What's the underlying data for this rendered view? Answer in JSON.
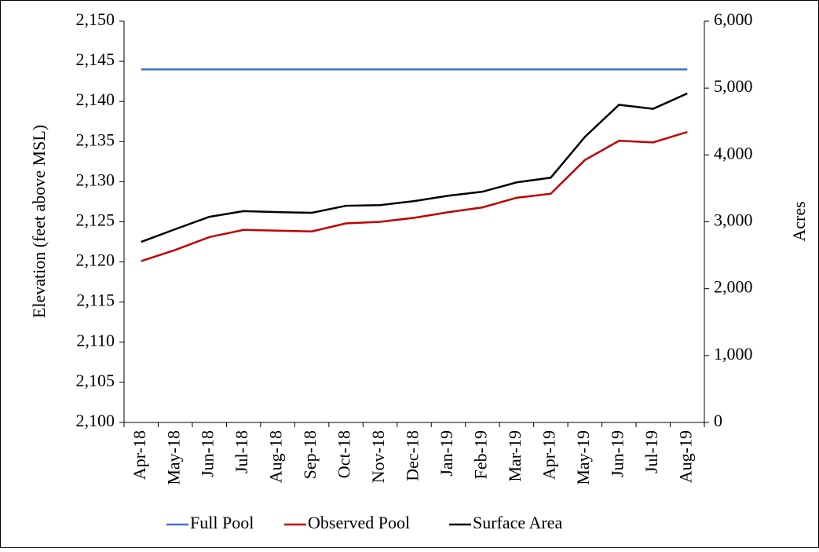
{
  "chart_data": {
    "type": "line",
    "ylabel": "Elevation (feet above MSL)",
    "y2label": "Acres",
    "categories": [
      "Apr-18",
      "May-18",
      "Jun-18",
      "Jul-18",
      "Aug-18",
      "Sep-18",
      "Oct-18",
      "Nov-18",
      "Dec-18",
      "Jan-19",
      "Feb-19",
      "Mar-19",
      "Apr-19",
      "May-19",
      "Jun-19",
      "Jul-19",
      "Aug-19"
    ],
    "series": [
      {
        "name": "Full Pool",
        "color": "#4472c4",
        "values": [
          2144,
          2144,
          2144,
          2144,
          2144,
          2144,
          2144,
          2144,
          2144,
          2144,
          2144,
          2144,
          2144,
          2144,
          2144,
          2144,
          2144
        ]
      },
      {
        "name": "Observed Pool",
        "color": "#c00000",
        "values": [
          2120.1,
          2121.5,
          2123.1,
          2124.0,
          2123.9,
          2123.8,
          2124.8,
          2125.0,
          2125.5,
          2126.2,
          2126.8,
          2128.0,
          2128.5,
          2132.7,
          2135.1,
          2134.9,
          2136.2
        ]
      },
      {
        "name": "Surface Area",
        "color": "#000000",
        "axis": "y2",
        "values": [
          2700,
          2890,
          3075,
          3160,
          3145,
          3135,
          3240,
          3250,
          3310,
          3390,
          3450,
          3590,
          3660,
          4270,
          4750,
          4690,
          4920
        ]
      }
    ],
    "ylim": [
      2100,
      2150
    ],
    "yticks": [
      {
        "value": 2100,
        "label": "2,100"
      },
      {
        "value": 2105,
        "label": "2,105"
      },
      {
        "value": 2110,
        "label": "2,110"
      },
      {
        "value": 2115,
        "label": "2,115"
      },
      {
        "value": 2120,
        "label": "2,120"
      },
      {
        "value": 2125,
        "label": "2,125"
      },
      {
        "value": 2130,
        "label": "2,130"
      },
      {
        "value": 2135,
        "label": "2,135"
      },
      {
        "value": 2140,
        "label": "2,140"
      },
      {
        "value": 2145,
        "label": "2,145"
      },
      {
        "value": 2150,
        "label": "2,150"
      }
    ],
    "y2lim": [
      0,
      6000
    ],
    "y2ticks": [
      0,
      {
        "value": 1000,
        "label": "1,000"
      },
      {
        "value": 2000,
        "label": "2,000"
      },
      {
        "value": 3000,
        "label": "3,000"
      },
      {
        "value": 4000,
        "label": "4,000"
      },
      {
        "value": 5000,
        "label": "5,000"
      },
      {
        "value": 6000,
        "label": "6,000"
      }
    ],
    "legend": "bottom"
  }
}
